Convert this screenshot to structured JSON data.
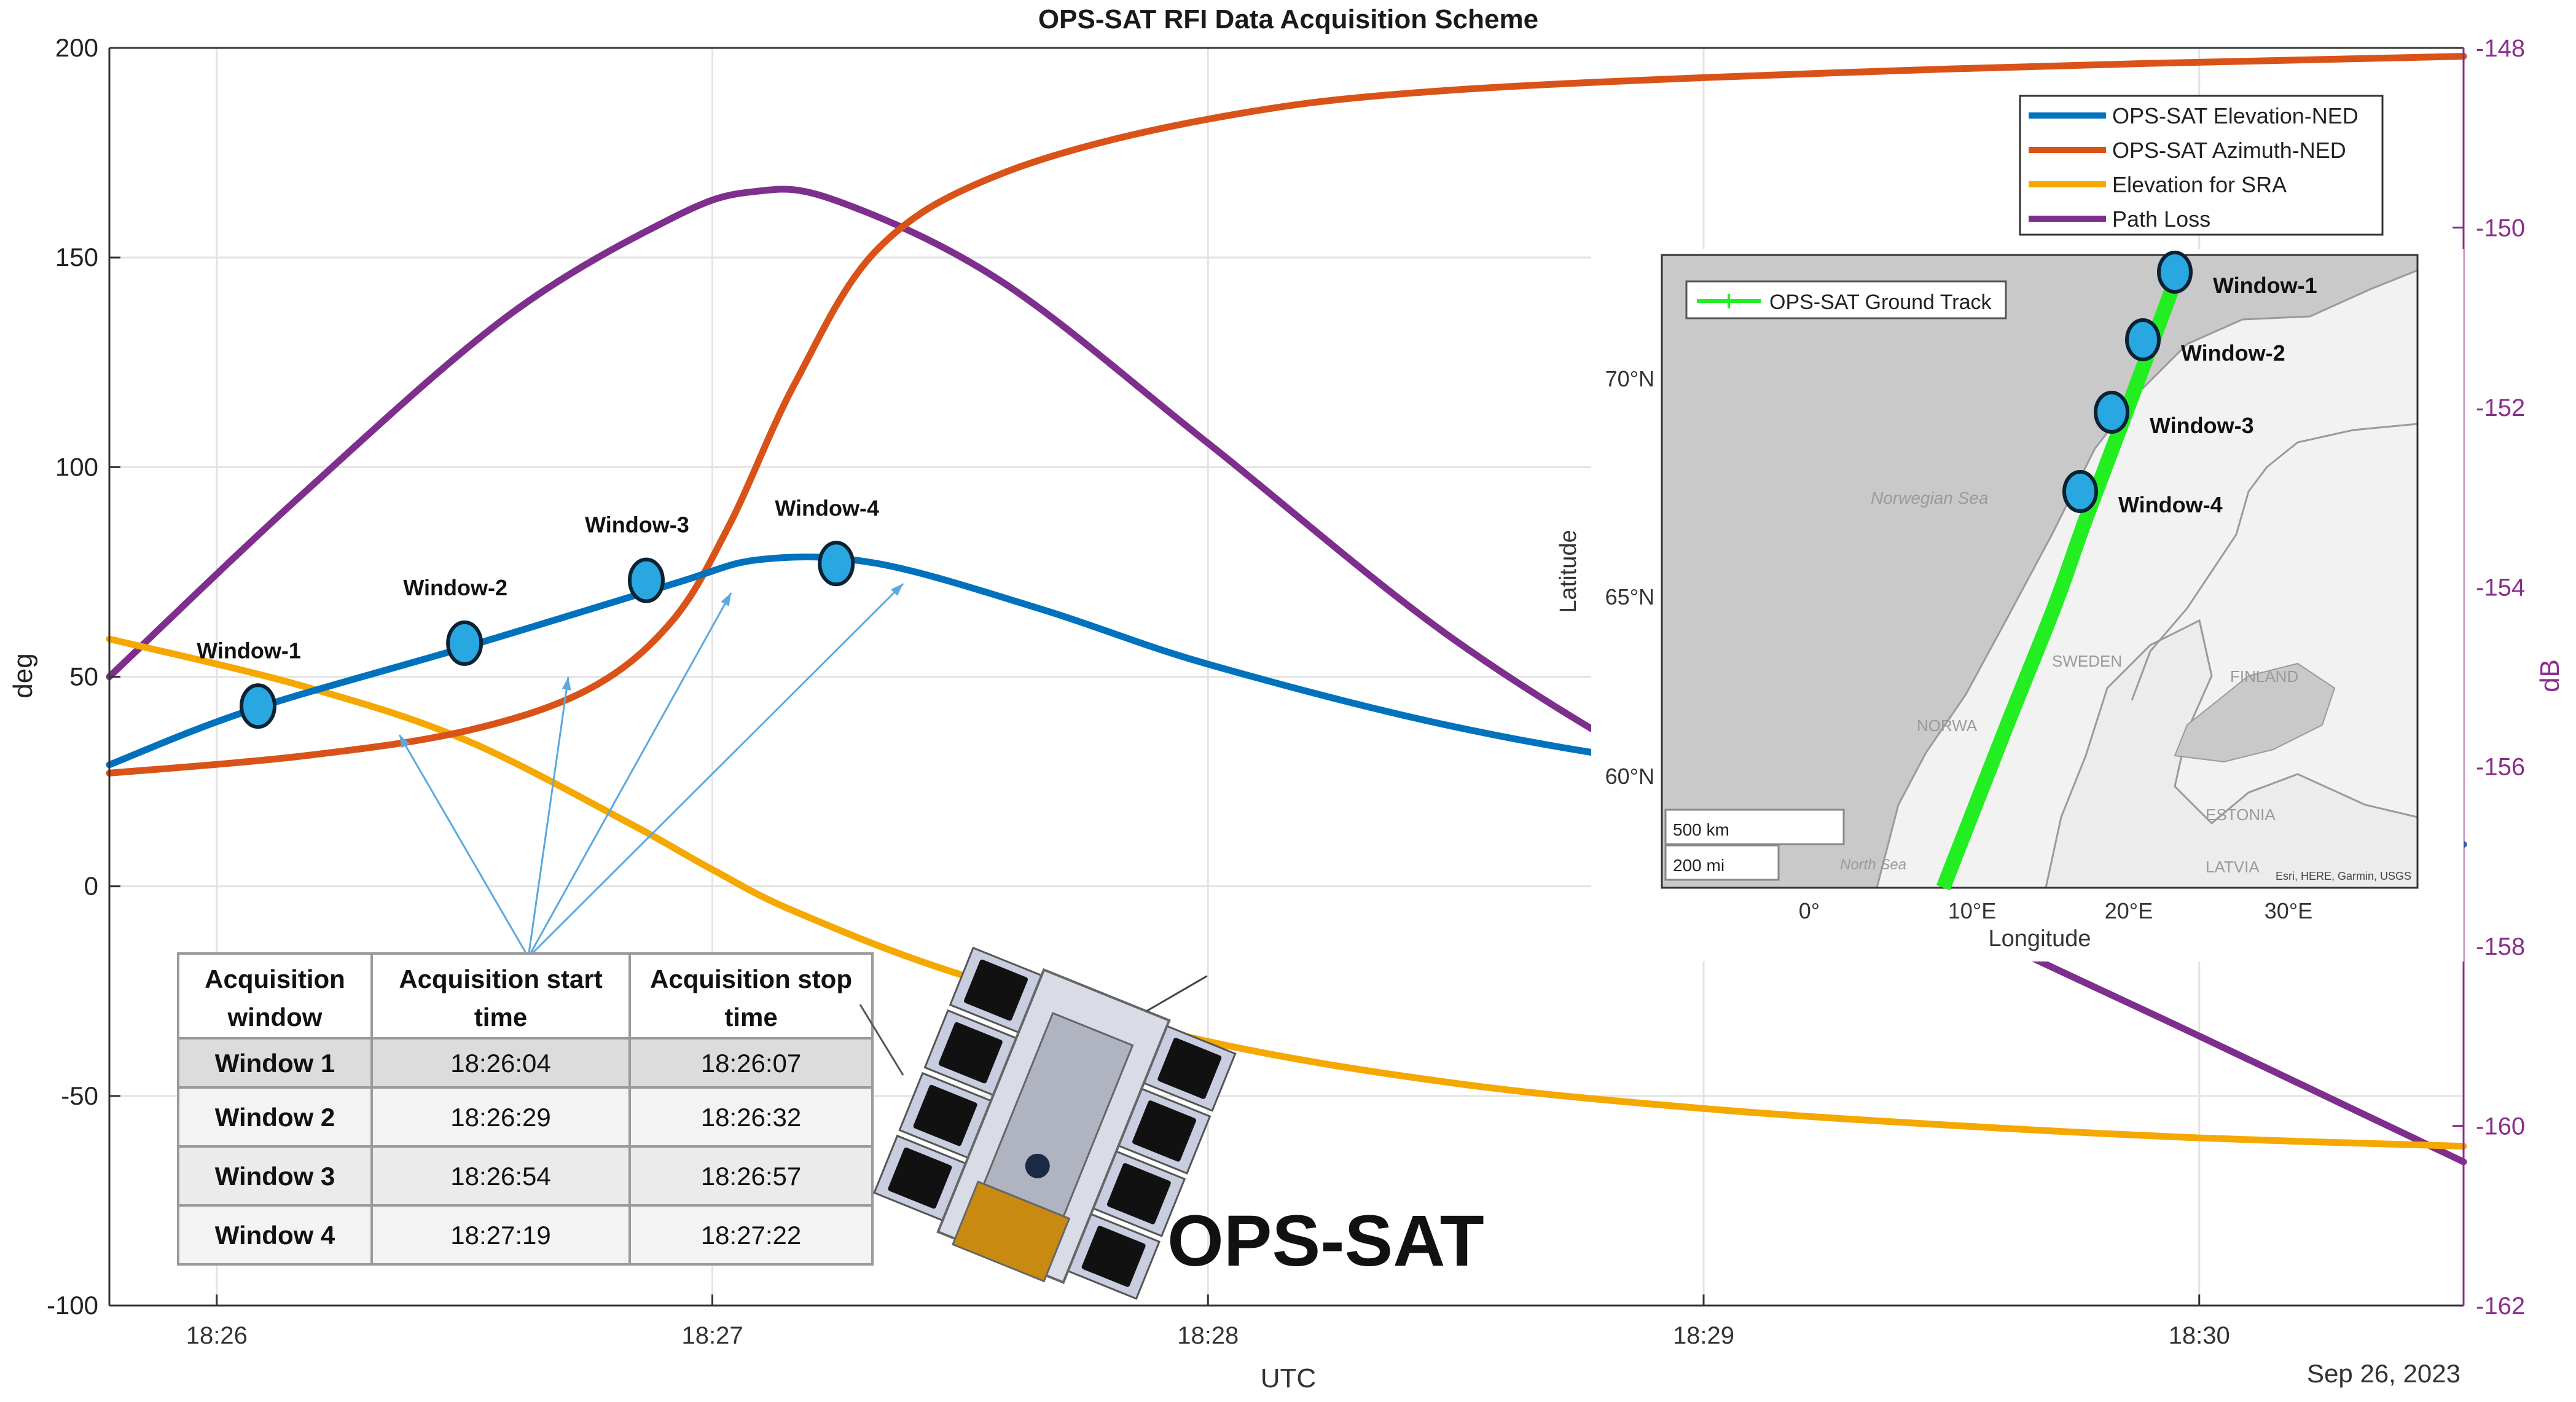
{
  "chart_data": {
    "type": "line",
    "title": "OPS-SAT RFI Data Acquisition Scheme",
    "xlabel": "UTC",
    "ylabel": "deg",
    "y2label": "dB",
    "date_label": "Sep 26, 2023",
    "x_ticks": [
      "18:26",
      "18:27",
      "18:28",
      "18:29",
      "18:30"
    ],
    "y_ticks": [
      "-100",
      "-50",
      "0",
      "50",
      "100",
      "150",
      "200"
    ],
    "y2_ticks": [
      "-162",
      "-160",
      "-158",
      "-156",
      "-154",
      "-152",
      "-150",
      "-148"
    ],
    "xlim": [
      "18:25:47",
      "18:30:32"
    ],
    "ylim": [
      -100,
      200
    ],
    "y2lim": [
      -162,
      -148
    ],
    "grid": true,
    "legend_position": "top-right",
    "series": [
      {
        "name": "OPS-SAT Elevation-NED",
        "axis": "left",
        "color": "#0072BD",
        "x": [
          "18:25:47",
          "18:26:04",
          "18:26:30",
          "18:26:55",
          "18:27:06",
          "18:27:20",
          "18:27:40",
          "18:28:00",
          "18:28:30",
          "18:29:00",
          "18:29:40",
          "18:30:32"
        ],
        "y": [
          29,
          42,
          57,
          72,
          78,
          77,
          66,
          53,
          38,
          28,
          19,
          10
        ]
      },
      {
        "name": "OPS-SAT Azimuth-NED",
        "axis": "left",
        "color": "#D95319",
        "x": [
          "18:25:47",
          "18:26:10",
          "18:26:30",
          "18:26:45",
          "18:26:55",
          "18:27:02",
          "18:27:10",
          "18:27:20",
          "18:27:35",
          "18:28:00",
          "18:28:30",
          "18:29:30",
          "18:30:32"
        ],
        "y": [
          27,
          31,
          37,
          47,
          63,
          86,
          120,
          152,
          170,
          183,
          190,
          195,
          198
        ]
      },
      {
        "name": "Elevation for SRA",
        "axis": "left",
        "color": "#F5A800",
        "x": [
          "18:25:47",
          "18:26:10",
          "18:26:30",
          "18:26:50",
          "18:27:00",
          "18:27:10",
          "18:27:30",
          "18:28:00",
          "18:28:30",
          "18:29:00",
          "18:29:30",
          "18:30:00",
          "18:30:32"
        ],
        "y": [
          59,
          48,
          35,
          15,
          4,
          -6,
          -21,
          -37,
          -47,
          -53,
          -57,
          -60,
          -62
        ]
      },
      {
        "name": "Path Loss",
        "axis": "right",
        "color": "#7E2F8E",
        "x": [
          "18:25:47",
          "18:26:10",
          "18:26:35",
          "18:26:55",
          "18:27:05",
          "18:27:15",
          "18:27:35",
          "18:28:00",
          "18:28:30",
          "18:29:00",
          "18:29:30",
          "18:30:00",
          "18:30:32"
        ],
        "y": [
          -155.0,
          -153.0,
          -151.0,
          -149.9,
          -149.6,
          -149.7,
          -150.6,
          -152.4,
          -154.6,
          -156.3,
          -157.7,
          -159.0,
          -160.4
        ]
      }
    ],
    "windows": [
      {
        "label": "Window-1",
        "x": "18:26:05",
        "y": 43
      },
      {
        "label": "Window-2",
        "x": "18:26:30",
        "y": 58
      },
      {
        "label": "Window-3",
        "x": "18:26:52",
        "y": 73
      },
      {
        "label": "Window-4",
        "x": "18:27:15",
        "y": 77
      }
    ]
  },
  "table": {
    "headers": [
      "Acquisition window",
      "Acquisition start time",
      "Acquisition stop time"
    ],
    "rows": [
      [
        "Window 1",
        "18:26:04",
        "18:26:07"
      ],
      [
        "Window 2",
        "18:26:29",
        "18:26:32"
      ],
      [
        "Window 3",
        "18:26:54",
        "18:26:57"
      ],
      [
        "Window 4",
        "18:27:19",
        "18:27:22"
      ]
    ]
  },
  "satellite_label": "OPS-SAT",
  "inset_map": {
    "legend": "OPS-SAT Ground Track",
    "xlabel": "Longitude",
    "ylabel": "Latitude",
    "lat_ticks": [
      "70°N",
      "65°N",
      "60°N"
    ],
    "lon_ticks": [
      "0°",
      "10°E",
      "20°E",
      "30°E"
    ],
    "place_labels": [
      "Norwegian Sea",
      "SWEDEN",
      "FINLAND",
      "NORWA",
      "ESTONIA",
      "LATVIA",
      "North Sea"
    ],
    "scale_labels": [
      "500 km",
      "200 mi"
    ],
    "attribution": "Esri, HERE, Garmin, USGS",
    "track_color": "#22EE22",
    "windows": [
      {
        "label": "Window-1",
        "lon": 22.6,
        "lat": 72.5
      },
      {
        "label": "Window-2",
        "lon": 20.6,
        "lat": 71.0
      },
      {
        "label": "Window-3",
        "lon": 18.7,
        "lat": 69.5
      },
      {
        "label": "Window-4",
        "lon": 16.8,
        "lat": 67.8
      }
    ]
  }
}
